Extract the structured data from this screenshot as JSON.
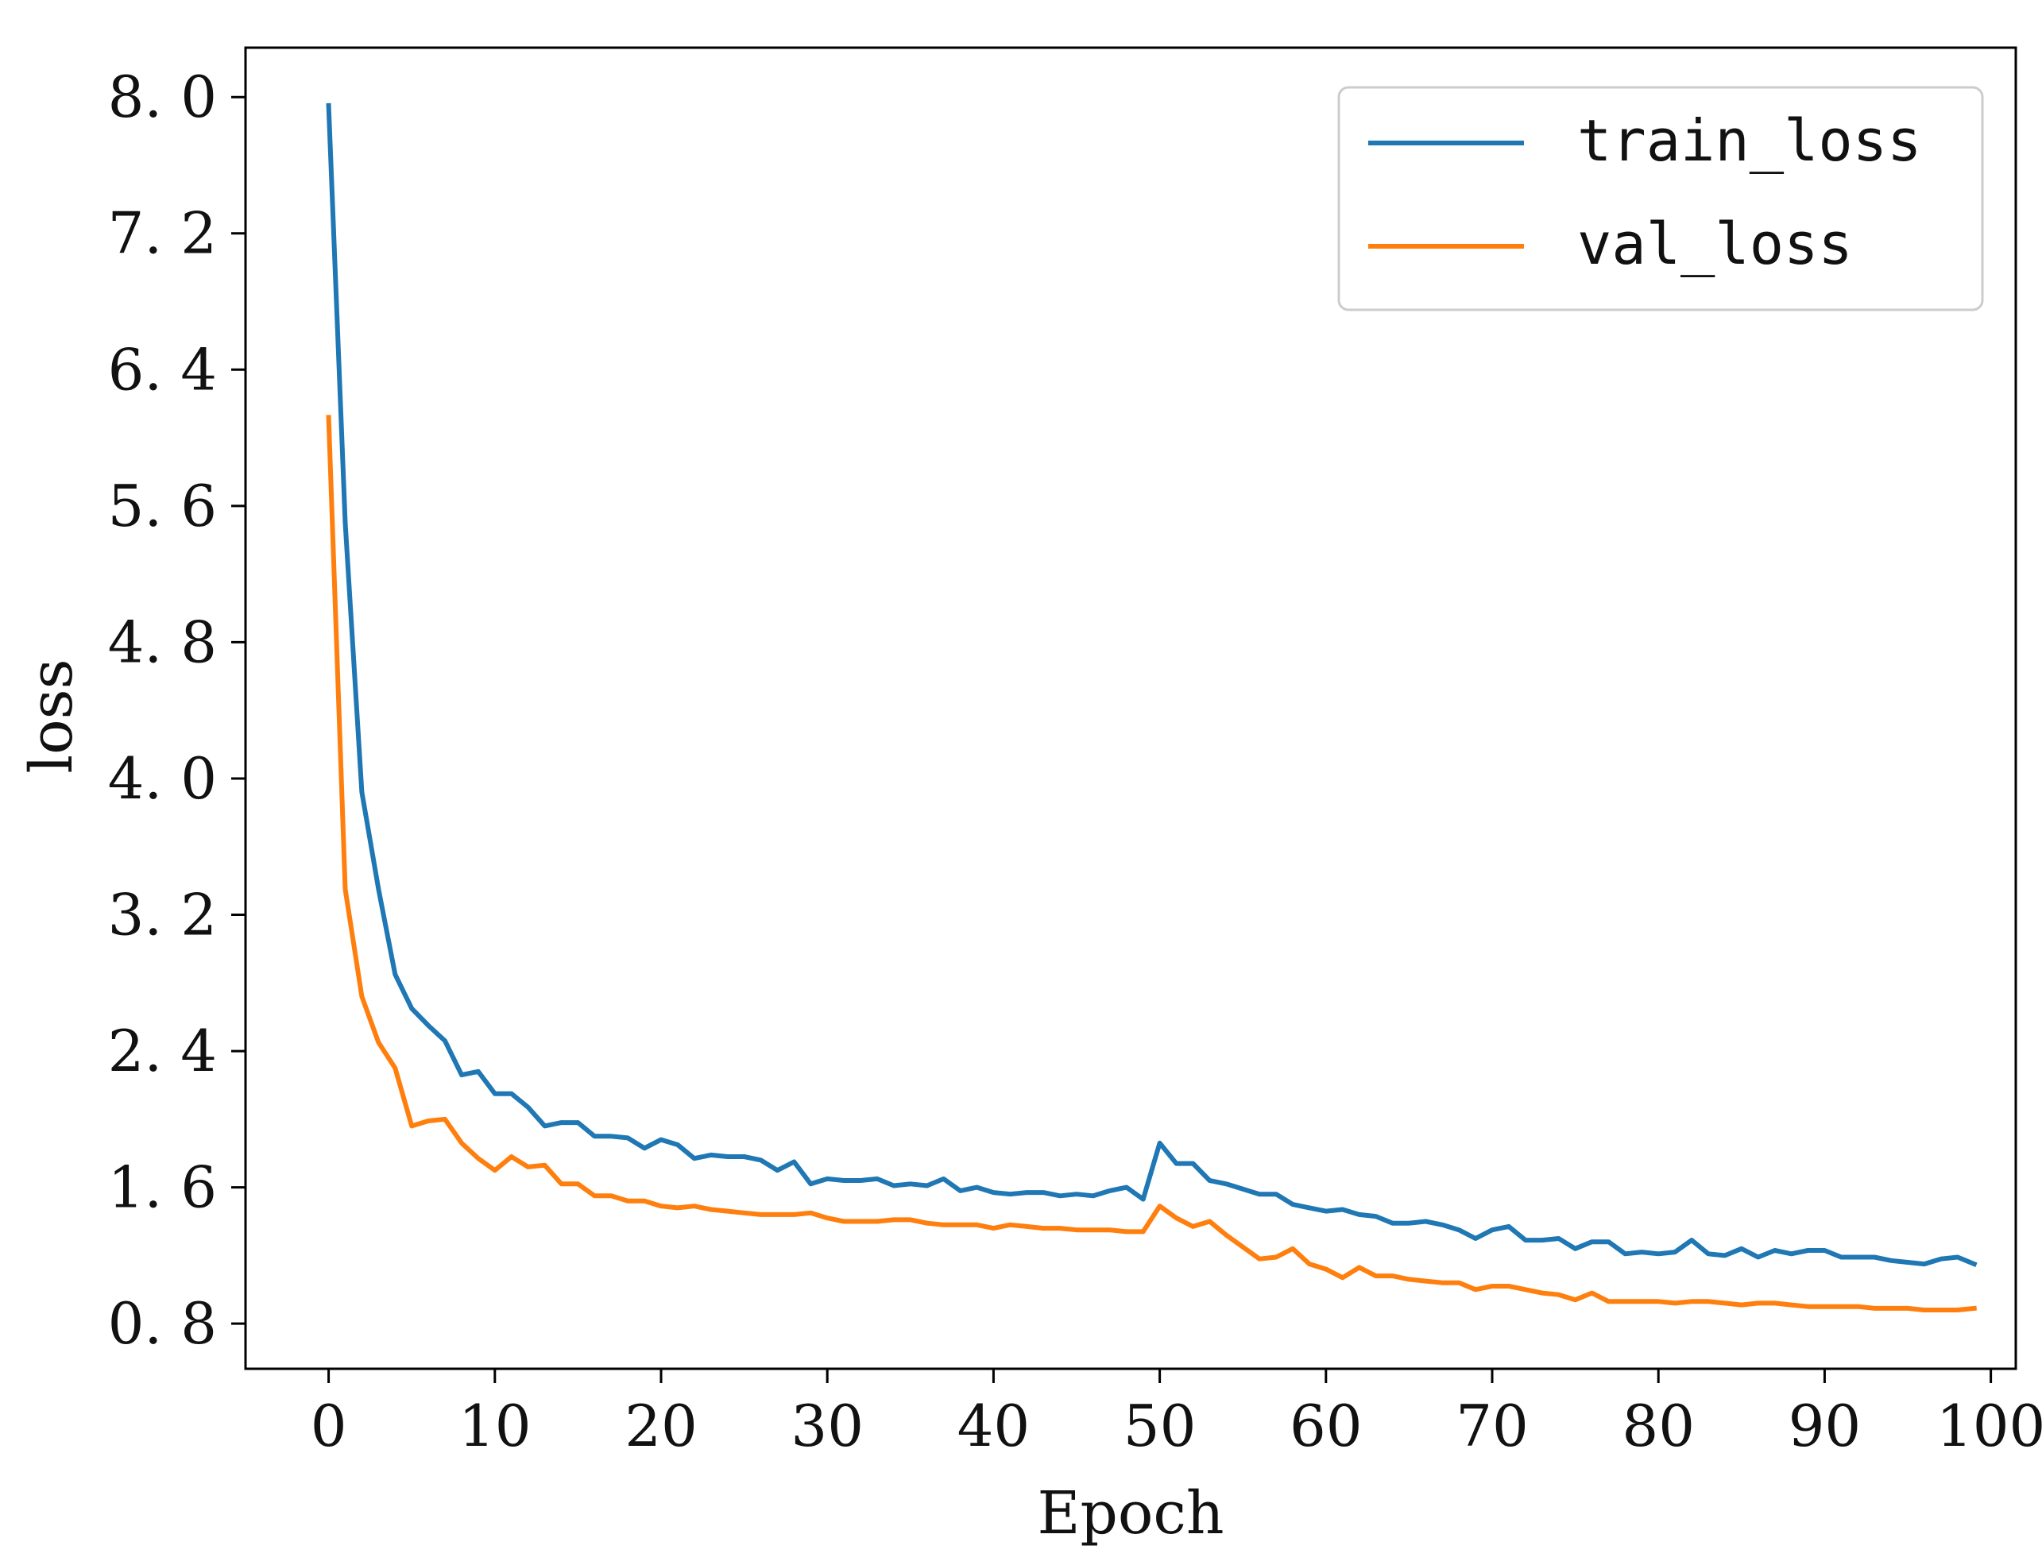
{
  "chart_data": {
    "type": "line",
    "title": "",
    "xlabel": "Epoch",
    "ylabel": "loss",
    "xlim": [
      -5,
      101.5
    ],
    "ylim": [
      0.535,
      8.29
    ],
    "xticks": [
      0,
      10,
      20,
      30,
      40,
      50,
      60,
      70,
      80,
      90,
      100
    ],
    "yticks": [
      0.8,
      1.6,
      2.4,
      3.2,
      4.0,
      4.8,
      5.6,
      6.4,
      7.2,
      8.0
    ],
    "ytick_labels": [
      "0. 8",
      "1. 6",
      "2. 4",
      "3. 2",
      "4. 0",
      "4. 8",
      "5. 6",
      "6. 4",
      "7. 2",
      "8. 0"
    ],
    "grid": false,
    "legend_position": "top-right",
    "x": [
      0,
      1,
      2,
      3,
      4,
      5,
      6,
      7,
      8,
      9,
      10,
      11,
      12,
      13,
      14,
      15,
      16,
      17,
      18,
      19,
      20,
      21,
      22,
      23,
      24,
      25,
      26,
      27,
      28,
      29,
      30,
      31,
      32,
      33,
      34,
      35,
      36,
      37,
      38,
      39,
      40,
      41,
      42,
      43,
      44,
      45,
      46,
      47,
      48,
      49,
      50,
      51,
      52,
      53,
      54,
      55,
      56,
      57,
      58,
      59,
      60,
      61,
      62,
      63,
      64,
      65,
      66,
      67,
      68,
      69,
      70,
      71,
      72,
      73,
      74,
      75,
      76,
      77,
      78,
      79,
      80,
      81,
      82,
      83,
      84,
      85,
      86,
      87,
      88,
      89,
      90,
      91,
      92,
      93,
      94,
      95,
      96,
      97,
      98,
      99
    ],
    "series": [
      {
        "name": "train_loss",
        "color": "#1f77b4",
        "values": [
          7.95,
          5.5,
          3.92,
          3.35,
          2.85,
          2.65,
          2.55,
          2.46,
          2.26,
          2.28,
          2.15,
          2.15,
          2.07,
          1.96,
          1.98,
          1.98,
          1.9,
          1.9,
          1.89,
          1.83,
          1.88,
          1.85,
          1.77,
          1.79,
          1.78,
          1.78,
          1.76,
          1.7,
          1.75,
          1.62,
          1.65,
          1.64,
          1.64,
          1.65,
          1.61,
          1.62,
          1.61,
          1.65,
          1.58,
          1.6,
          1.57,
          1.56,
          1.57,
          1.57,
          1.55,
          1.56,
          1.55,
          1.58,
          1.6,
          1.53,
          1.86,
          1.74,
          1.74,
          1.64,
          1.62,
          1.59,
          1.56,
          1.56,
          1.5,
          1.48,
          1.46,
          1.47,
          1.44,
          1.43,
          1.39,
          1.39,
          1.4,
          1.38,
          1.35,
          1.3,
          1.35,
          1.37,
          1.29,
          1.29,
          1.3,
          1.24,
          1.28,
          1.28,
          1.21,
          1.22,
          1.21,
          1.22,
          1.29,
          1.21,
          1.2,
          1.24,
          1.19,
          1.23,
          1.21,
          1.23,
          1.23,
          1.19,
          1.19,
          1.19,
          1.17,
          1.16,
          1.15,
          1.18,
          1.19,
          1.15
        ]
      },
      {
        "name": "val_loss",
        "color": "#ff7f0e",
        "values": [
          6.12,
          3.35,
          2.72,
          2.45,
          2.3,
          1.96,
          1.99,
          2.0,
          1.86,
          1.77,
          1.7,
          1.78,
          1.72,
          1.73,
          1.62,
          1.62,
          1.55,
          1.55,
          1.52,
          1.52,
          1.49,
          1.48,
          1.49,
          1.47,
          1.46,
          1.45,
          1.44,
          1.44,
          1.44,
          1.45,
          1.42,
          1.4,
          1.4,
          1.4,
          1.41,
          1.41,
          1.39,
          1.38,
          1.38,
          1.38,
          1.36,
          1.38,
          1.37,
          1.36,
          1.36,
          1.35,
          1.35,
          1.35,
          1.34,
          1.34,
          1.49,
          1.42,
          1.37,
          1.4,
          1.32,
          1.25,
          1.18,
          1.19,
          1.24,
          1.15,
          1.12,
          1.07,
          1.13,
          1.08,
          1.08,
          1.06,
          1.05,
          1.04,
          1.04,
          1.0,
          1.02,
          1.02,
          1.0,
          0.98,
          0.97,
          0.94,
          0.98,
          0.93,
          0.93,
          0.93,
          0.93,
          0.92,
          0.93,
          0.93,
          0.92,
          0.91,
          0.92,
          0.92,
          0.91,
          0.9,
          0.9,
          0.9,
          0.9,
          0.89,
          0.89,
          0.89,
          0.88,
          0.88,
          0.88,
          0.89
        ]
      }
    ]
  }
}
